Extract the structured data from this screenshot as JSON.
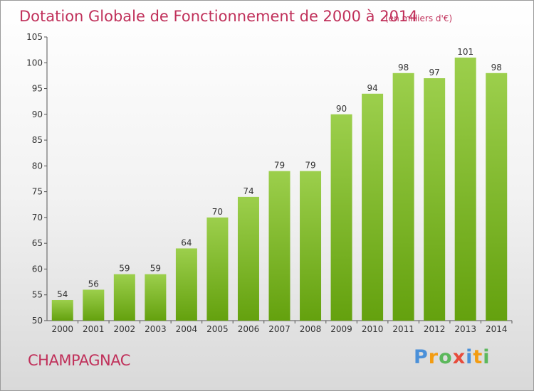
{
  "chart_data": {
    "type": "bar",
    "title": "Dotation Globale de Fonctionnement de 2000 à 2014",
    "subtitle": "(en milliers d'€)",
    "categories": [
      "2000",
      "2001",
      "2002",
      "2003",
      "2004",
      "2005",
      "2006",
      "2007",
      "2008",
      "2009",
      "2010",
      "2011",
      "2012",
      "2013",
      "2014"
    ],
    "values": [
      54,
      56,
      59,
      59,
      64,
      70,
      74,
      79,
      79,
      90,
      94,
      98,
      97,
      101,
      98
    ],
    "ylim": [
      50,
      105
    ],
    "yticks": [
      50,
      55,
      60,
      65,
      70,
      75,
      80,
      85,
      90,
      95,
      100,
      105
    ],
    "grid": false,
    "colors": {
      "bar_top": "#9ccf4c",
      "bar_bottom": "#64a10e",
      "text": "#c0305a"
    }
  },
  "footer": {
    "commune": "CHAMPAGNAC",
    "brand": [
      "P",
      "r",
      "o",
      "x",
      "i",
      "t",
      "i"
    ],
    "brand_colors": [
      "#4a90d9",
      "#f39c12",
      "#5cb85c",
      "#e74c3c",
      "#4a90d9",
      "#f39c12",
      "#5cb85c"
    ]
  }
}
